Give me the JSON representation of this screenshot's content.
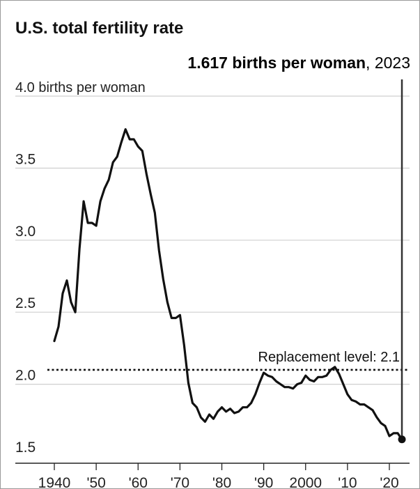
{
  "chart_data": {
    "type": "line",
    "title": "U.S. total fertility rate",
    "ylabel": "births per woman",
    "ylim": [
      1.5,
      4.0
    ],
    "yticks": [
      {
        "value": 4.0,
        "label": "4.0 births per woman"
      },
      {
        "value": 3.5,
        "label": "3.5"
      },
      {
        "value": 3.0,
        "label": "3.0"
      },
      {
        "value": 2.5,
        "label": "2.5"
      },
      {
        "value": 2.0,
        "label": "2.0"
      },
      {
        "value": 1.5,
        "label": "1.5"
      }
    ],
    "xlim": [
      1938,
      2025
    ],
    "xticks": [
      {
        "value": 1940,
        "label": "1940"
      },
      {
        "value": 1950,
        "label": "'50"
      },
      {
        "value": 1960,
        "label": "'60"
      },
      {
        "value": 1970,
        "label": "'70"
      },
      {
        "value": 1980,
        "label": "'80"
      },
      {
        "value": 1990,
        "label": "'90"
      },
      {
        "value": 2000,
        "label": "2000"
      },
      {
        "value": 2010,
        "label": "'10"
      },
      {
        "value": 2020,
        "label": "'20"
      }
    ],
    "grid": true,
    "series": [
      {
        "x": [
          1940,
          1941,
          1942,
          1943,
          1944,
          1945,
          1946,
          1947,
          1948,
          1949,
          1950,
          1951,
          1952,
          1953,
          1954,
          1955,
          1956,
          1957,
          1958,
          1959,
          1960,
          1961,
          1962,
          1963,
          1964,
          1965,
          1966,
          1967,
          1968,
          1969,
          1970,
          1971,
          1972,
          1973,
          1974,
          1975,
          1976,
          1977,
          1978,
          1979,
          1980,
          1981,
          1982,
          1983,
          1984,
          1985,
          1986,
          1987,
          1988,
          1989,
          1990,
          1991,
          1992,
          1993,
          1994,
          1995,
          1996,
          1997,
          1998,
          1999,
          2000,
          2001,
          2002,
          2003,
          2004,
          2005,
          2006,
          2007,
          2008,
          2009,
          2010,
          2011,
          2012,
          2013,
          2014,
          2015,
          2016,
          2017,
          2018,
          2019,
          2020,
          2021,
          2022,
          2023
        ],
        "y": [
          2.3,
          2.4,
          2.63,
          2.72,
          2.57,
          2.5,
          2.94,
          3.27,
          3.12,
          3.12,
          3.1,
          3.27,
          3.36,
          3.42,
          3.54,
          3.58,
          3.68,
          3.77,
          3.7,
          3.7,
          3.65,
          3.62,
          3.46,
          3.32,
          3.19,
          2.93,
          2.73,
          2.57,
          2.46,
          2.46,
          2.48,
          2.27,
          2.01,
          1.87,
          1.84,
          1.77,
          1.74,
          1.79,
          1.76,
          1.81,
          1.84,
          1.81,
          1.83,
          1.8,
          1.81,
          1.84,
          1.84,
          1.87,
          1.93,
          2.01,
          2.08,
          2.06,
          2.05,
          2.02,
          2.0,
          1.98,
          1.98,
          1.97,
          2.0,
          2.01,
          2.06,
          2.03,
          2.02,
          2.05,
          2.05,
          2.06,
          2.1,
          2.12,
          2.07,
          2.0,
          1.93,
          1.89,
          1.88,
          1.86,
          1.86,
          1.84,
          1.82,
          1.77,
          1.73,
          1.71,
          1.64,
          1.66,
          1.66,
          1.617
        ]
      }
    ],
    "reference_line": {
      "value": 2.1,
      "label": "Replacement level: 2.1"
    },
    "annotation": {
      "year": 2023,
      "value_text": "1.617 births per woman",
      "year_text": ", 2023"
    }
  }
}
